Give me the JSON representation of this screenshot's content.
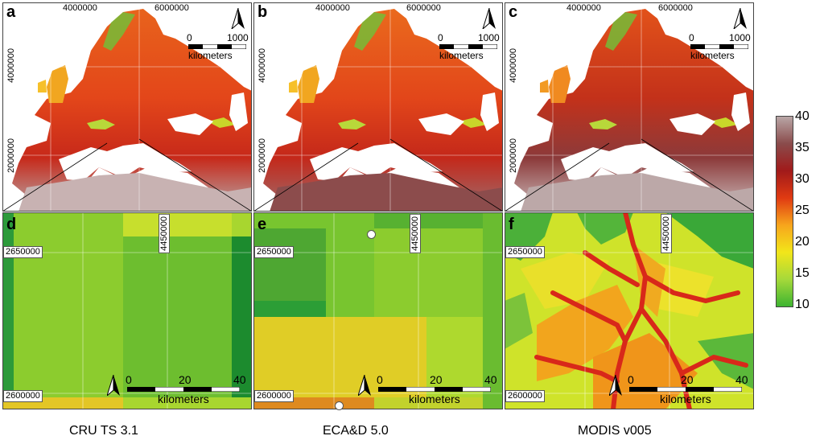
{
  "panels": [
    {
      "letter": "a",
      "x_top_left": "4000000",
      "x_top_right": "6000000",
      "y_upper": "4000000",
      "y_lower": "2000000",
      "scale_zero": "0",
      "scale_max": "1000",
      "scale_unit": "kilometers"
    },
    {
      "letter": "b",
      "x_top_left": "4000000",
      "x_top_right": "6000000",
      "y_upper": "4000000",
      "y_lower": "2000000",
      "scale_zero": "0",
      "scale_max": "1000",
      "scale_unit": "kilometers"
    },
    {
      "letter": "c",
      "x_top_left": "4000000",
      "x_top_right": "6000000",
      "y_upper": "4000000",
      "y_lower": "2000000",
      "scale_zero": "0",
      "scale_max": "1000",
      "scale_unit": "kilometers"
    },
    {
      "letter": "d",
      "y_top": "2650000",
      "y_bottom": "2600000",
      "x_mid": "4450000",
      "scale_zero": "0",
      "scale_mid": "20",
      "scale_max": "40",
      "scale_unit": "kilometers"
    },
    {
      "letter": "e",
      "y_top": "2650000",
      "y_bottom": "2600000",
      "x_mid": "4450000",
      "scale_zero": "0",
      "scale_mid": "20",
      "scale_max": "40",
      "scale_unit": "kilometers"
    },
    {
      "letter": "f",
      "y_top": "2650000",
      "y_bottom": "2600000",
      "x_mid": "4450000",
      "scale_zero": "0",
      "scale_mid": "20",
      "scale_max": "40",
      "scale_unit": "kilometers"
    }
  ],
  "captions": [
    "CRU TS 3.1",
    "ECA&D 5.0",
    "MODIS v005"
  ],
  "colorbar": {
    "ticks": [
      "40",
      "35",
      "30",
      "25",
      "20",
      "15",
      "10"
    ],
    "colors": [
      "#b9a6a6",
      "#8a4b4b",
      "#a11a1a",
      "#e03a12",
      "#f7a51c",
      "#f2e61a",
      "#a6d93a",
      "#3db431"
    ]
  }
}
